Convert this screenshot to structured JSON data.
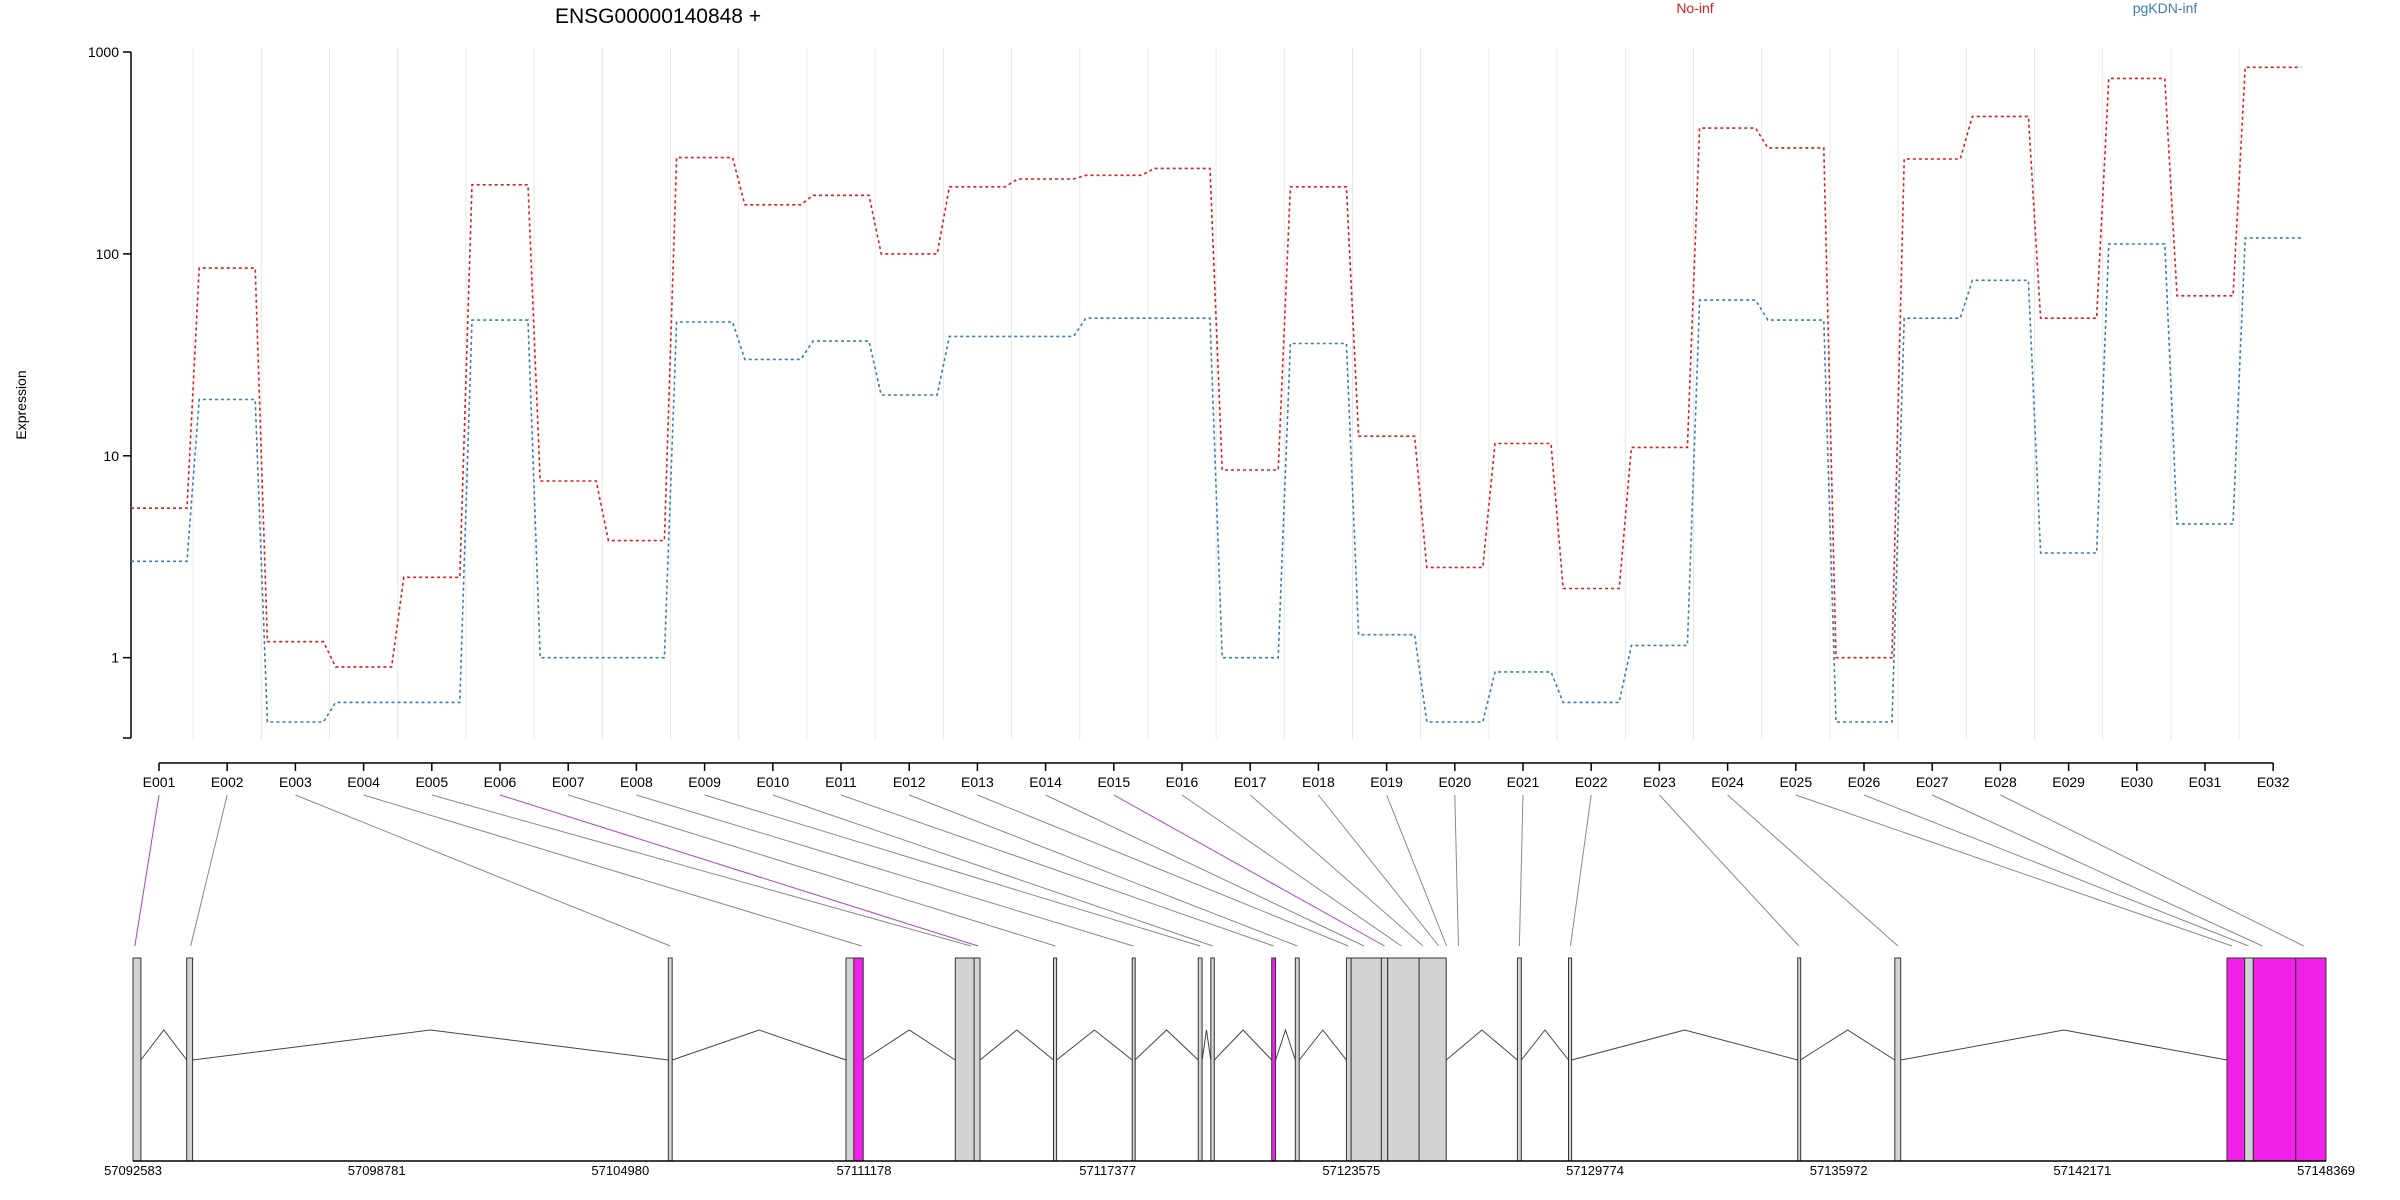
{
  "chart_data": {
    "type": "line",
    "title": "ENSG00000140848 +",
    "ylabel": "Expression",
    "xlabel": "",
    "yscale": "log",
    "ylim": [
      0.4,
      1000
    ],
    "yticks": [
      "1",
      "10",
      "100",
      "1000"
    ],
    "grid": "vertical",
    "legend": "top",
    "categories": [
      "E001",
      "E002",
      "E003",
      "E004",
      "E005",
      "E006",
      "E007",
      "E008",
      "E009",
      "E010",
      "E011",
      "E012",
      "E013",
      "E014",
      "E015",
      "E016",
      "E017",
      "E018",
      "E019",
      "E020",
      "E021",
      "E022",
      "E023",
      "E024",
      "E025",
      "E026",
      "E027",
      "E028",
      "E029",
      "E030",
      "E031",
      "E032"
    ],
    "series": [
      {
        "name": "No-inf",
        "color": "#e41a1c",
        "values": [
          5.5,
          85,
          1.2,
          0.9,
          2.5,
          220,
          7.5,
          3.8,
          300,
          175,
          195,
          100,
          215,
          235,
          245,
          265,
          8.5,
          215,
          12.5,
          2.8,
          11.5,
          2.2,
          11,
          420,
          335,
          1.0,
          295,
          480,
          48,
          740,
          62,
          840
        ]
      },
      {
        "name": "pgKDN-inf",
        "color": "#377eb8",
        "values": [
          3.0,
          19,
          0.48,
          0.6,
          0.6,
          47,
          1.0,
          1.0,
          46,
          30,
          37,
          20,
          39,
          39,
          48,
          48,
          1.0,
          36,
          1.3,
          0.48,
          0.85,
          0.6,
          1.15,
          59,
          47,
          0.48,
          48,
          74,
          3.3,
          112,
          4.6,
          120
        ]
      }
    ],
    "highlighted_exons": [
      "E001",
      "E006",
      "E015",
      "E029",
      "E031",
      "E032"
    ],
    "gene_model": {
      "coordinate_labels": [
        "57092583",
        "57098781",
        "57104980",
        "57111178",
        "57117377",
        "57123575",
        "57129774",
        "57135972",
        "57142171",
        "57148369"
      ],
      "start": 57092583,
      "end": 57148369,
      "exon_regions": [
        [
          57092583,
          57092783,
          "grey"
        ],
        [
          57093950,
          57094100,
          "grey"
        ],
        [
          57106200,
          57106300,
          "grey"
        ],
        [
          57110720,
          57110920,
          "grey"
        ],
        [
          57110920,
          57111160,
          "magenta"
        ],
        [
          57113500,
          57113980,
          "grey"
        ],
        [
          57113980,
          57114130,
          "grey"
        ],
        [
          57116000,
          57116080,
          "grey"
        ],
        [
          57118000,
          57118070,
          "grey"
        ],
        [
          57119680,
          57119780,
          "grey"
        ],
        [
          57120000,
          57120090,
          "grey"
        ],
        [
          57121550,
          57121650,
          "magenta"
        ],
        [
          57122150,
          57122250,
          "grey"
        ],
        [
          57123450,
          57123570,
          "grey"
        ],
        [
          57123570,
          57124340,
          "grey"
        ],
        [
          57124340,
          57124500,
          "grey"
        ],
        [
          57124500,
          57125300,
          "grey"
        ],
        [
          57125300,
          57125990,
          "grey"
        ],
        [
          57127800,
          57127900,
          "grey"
        ],
        [
          57129100,
          57129180,
          "grey"
        ],
        [
          57134930,
          57135000,
          "grey"
        ],
        [
          57137400,
          57137550,
          "grey"
        ],
        [
          57145850,
          57146300,
          "magenta"
        ],
        [
          57146300,
          57146520,
          "grey"
        ],
        [
          57146520,
          57147600,
          "magenta"
        ],
        [
          57147600,
          57148369,
          "magenta"
        ]
      ],
      "exon_genomic_positions": [
        57092630,
        57094050,
        57106250,
        57111120,
        57113900,
        57114080,
        57116050,
        57118030,
        57119730,
        57120050,
        57121600,
        57122200,
        57123500,
        57123900,
        57124420,
        57124850,
        57125400,
        57125800,
        57126000,
        57126300,
        57127850,
        57129150,
        57134960,
        57137480,
        57145980,
        57146400,
        57146750,
        57147800
      ]
    }
  }
}
